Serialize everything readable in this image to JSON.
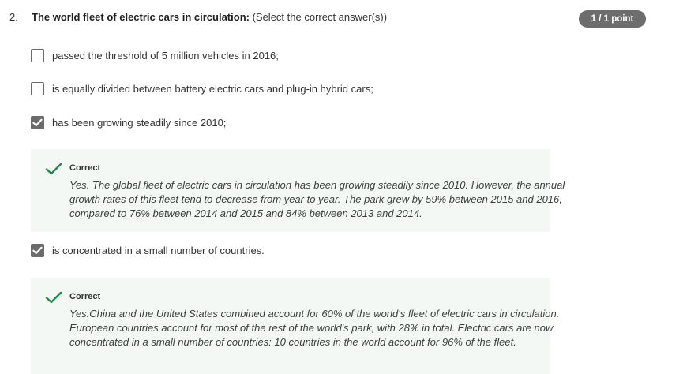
{
  "question": {
    "number": "2.",
    "title_bold": "The world fleet of electric cars in circulation:",
    "title_hint": " (Select the correct answer(s))",
    "score": "1 / 1 point"
  },
  "options": [
    {
      "label": "passed the threshold of 5 million vehicles in 2016;",
      "checked": false
    },
    {
      "label": "is equally divided between battery electric cars and plug-in hybrid cars;",
      "checked": false
    },
    {
      "label": "has been growing steadily since 2010;",
      "checked": true
    },
    {
      "label": "is concentrated in a small number of countries.",
      "checked": true
    }
  ],
  "feedback": [
    {
      "status": "Correct",
      "text": "Yes. The global fleet of electric cars in circulation has been growing steadily since 2010. However, the annual growth rates of this fleet tend to decrease from year to year. The park grew by 59% between 2015 and 2016, compared to 76% between 2014 and 2015 and 84% between 2013 and 2014."
    },
    {
      "status": "Correct",
      "text": "Yes.China and the United States combined account for 60% of the world's fleet of electric cars in circulation. European countries account for most of the rest of the world's park, with 28% in total. Electric cars are now concentrated in a small number of countries: 10 countries in the world account for 96% of the fleet."
    }
  ],
  "colors": {
    "correct_green": "#1e8a4c",
    "feedback_bg": "#f3f8f5",
    "badge_bg": "#6d6d6d",
    "checkbox_gray": "#6b6b6b"
  }
}
